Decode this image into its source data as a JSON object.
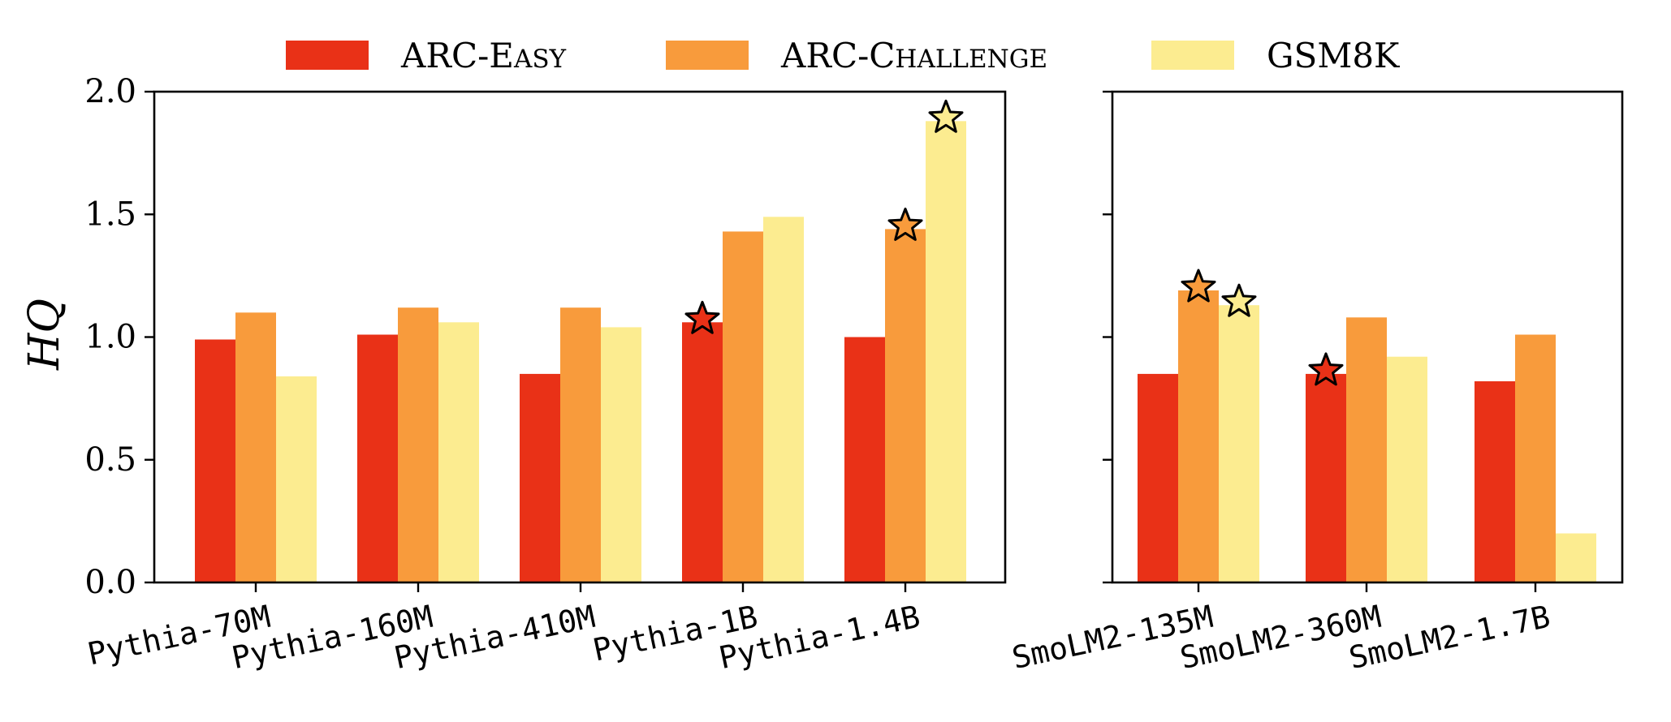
{
  "chart_data": [
    {
      "type": "bar",
      "panel": "left",
      "categories": [
        "Pythia-70M",
        "Pythia-160M",
        "Pythia-410M",
        "Pythia-1B",
        "Pythia-1.4B"
      ],
      "series": [
        {
          "name": "ARC-Easy",
          "key": "arc_easy",
          "values": [
            0.99,
            1.01,
            0.85,
            1.06,
            1.0
          ]
        },
        {
          "name": "ARC-Challenge",
          "key": "arc_challenge",
          "values": [
            1.1,
            1.12,
            1.12,
            1.43,
            1.44
          ]
        },
        {
          "name": "GSM8K",
          "key": "gsm8k",
          "values": [
            0.84,
            1.06,
            1.04,
            1.49,
            1.88
          ]
        }
      ],
      "best": {
        "arc_easy": 3,
        "arc_challenge": 4,
        "gsm8k": 4
      },
      "ylabel": "HQ",
      "ylim": [
        0,
        2.0
      ],
      "yticks": [
        "0.0",
        "0.5",
        "1.0",
        "1.5",
        "2.0"
      ],
      "ytick_values": [
        0,
        0.5,
        1.0,
        1.5,
        2.0
      ]
    },
    {
      "type": "bar",
      "panel": "right",
      "categories": [
        "SmoLM2-135M",
        "SmoLM2-360M",
        "SmoLM2-1.7B"
      ],
      "series": [
        {
          "name": "ARC-Easy",
          "key": "arc_easy",
          "values": [
            0.85,
            0.85,
            0.82
          ]
        },
        {
          "name": "ARC-Challenge",
          "key": "arc_challenge",
          "values": [
            1.19,
            1.08,
            1.01
          ]
        },
        {
          "name": "GSM8K",
          "key": "gsm8k",
          "values": [
            1.13,
            0.92,
            0.2
          ]
        }
      ],
      "best": {
        "arc_easy": 1,
        "arc_challenge": 0,
        "gsm8k": 0
      },
      "ylim": [
        0,
        2.0
      ],
      "ytick_values": [
        0,
        0.5,
        1.0,
        1.5,
        2.0
      ]
    }
  ],
  "legend": {
    "items": [
      {
        "key": "arc_easy",
        "main": "ARC-E",
        "small": "ASY"
      },
      {
        "key": "arc_challenge",
        "main": "ARC-C",
        "small": "HALLENGE"
      },
      {
        "key": "gsm8k",
        "main": "GSM8K",
        "small": ""
      }
    ]
  },
  "colors": {
    "arc_easy": "#e93117",
    "arc_challenge": "#f89b3c",
    "gsm8k": "#fcec90"
  },
  "marker": {
    "shape": "star-icon"
  }
}
